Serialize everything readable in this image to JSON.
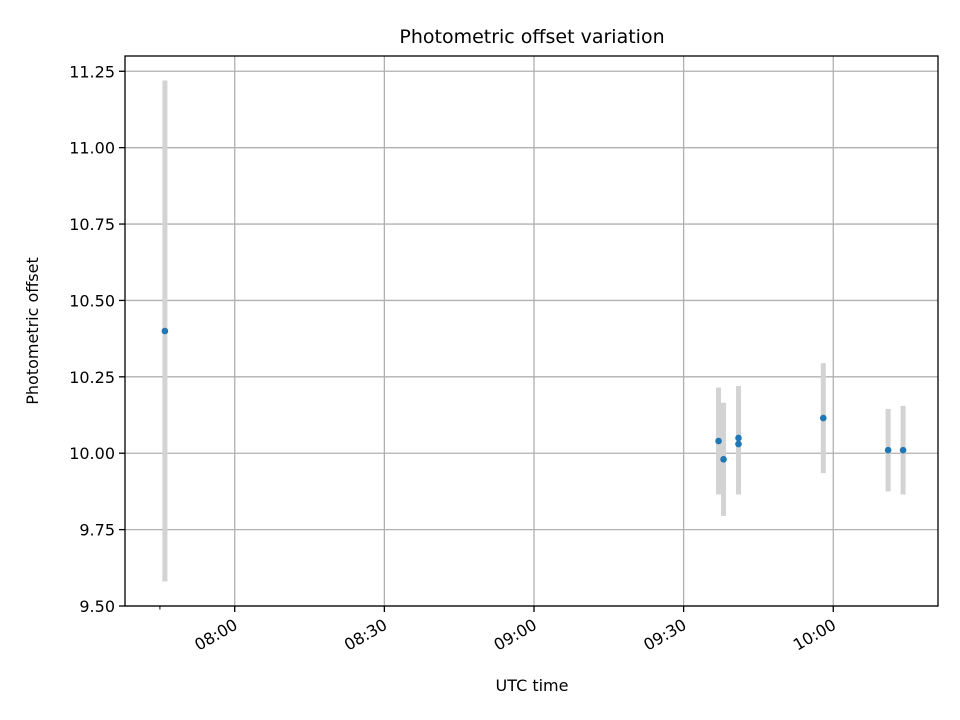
{
  "chart_data": {
    "type": "scatter",
    "title": "Photometric offset variation",
    "xlabel": "UTC time",
    "ylabel": "Photometric offset",
    "x_ticks": [
      "07:45",
      "08:00",
      "08:30",
      "09:00",
      "09:30",
      "10:00"
    ],
    "x_ticks_labeled": [
      "08:00",
      "08:30",
      "09:00",
      "09:30",
      "10:00"
    ],
    "xlim": [
      "07:38",
      "10:21"
    ],
    "ylim": [
      9.5,
      11.3
    ],
    "y_ticks": [
      "9.50",
      "9.75",
      "10.00",
      "10.25",
      "10.50",
      "10.75",
      "11.00",
      "11.25"
    ],
    "grid": true,
    "colors": {
      "marker": "#1f77b4",
      "errorbar": "#d3d3d3",
      "grid": "#b0b0b0"
    },
    "points": [
      {
        "x": "07:46",
        "y": 10.4,
        "err": 0.82
      },
      {
        "x": "09:37",
        "y": 10.04,
        "err": 0.175
      },
      {
        "x": "09:38",
        "y": 9.98,
        "err": 0.185
      },
      {
        "x": "09:41",
        "y": 10.03,
        "err": 0.165
      },
      {
        "x": "09:41",
        "y": 10.05,
        "err": 0.17
      },
      {
        "x": "09:58",
        "y": 10.115,
        "err": 0.18
      },
      {
        "x": "10:11",
        "y": 10.01,
        "err": 0.135
      },
      {
        "x": "10:14",
        "y": 10.01,
        "err": 0.145
      }
    ]
  }
}
